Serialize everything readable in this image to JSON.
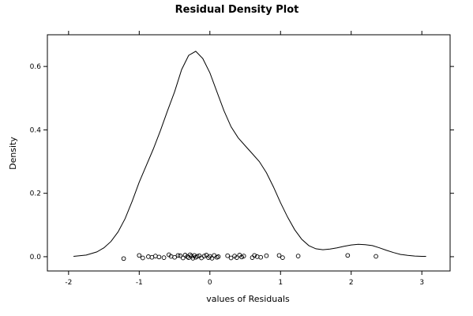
{
  "chart_data": {
    "type": "line",
    "title": "Residual Density Plot",
    "xlabel": "values of Residuals",
    "ylabel": "Density",
    "xlim": [
      -2.3,
      3.4
    ],
    "ylim": [
      -0.045,
      0.7
    ],
    "x_ticks": [
      -2,
      -1,
      0,
      1,
      2,
      3
    ],
    "y_ticks": [
      0.0,
      0.2,
      0.4,
      0.6
    ],
    "y_tick_labels": [
      "0.0",
      "0.2",
      "0.4",
      "0.6"
    ],
    "grid": false,
    "density_curve": {
      "x": [
        -1.93,
        -1.75,
        -1.6,
        -1.5,
        -1.4,
        -1.3,
        -1.2,
        -1.1,
        -1.0,
        -0.9,
        -0.8,
        -0.7,
        -0.6,
        -0.5,
        -0.4,
        -0.3,
        -0.2,
        -0.1,
        0.0,
        0.1,
        0.2,
        0.3,
        0.4,
        0.5,
        0.6,
        0.7,
        0.8,
        0.9,
        1.0,
        1.1,
        1.2,
        1.3,
        1.4,
        1.5,
        1.6,
        1.7,
        1.8,
        1.9,
        2.0,
        2.1,
        2.2,
        2.3,
        2.4,
        2.5,
        2.6,
        2.7,
        2.8,
        2.9,
        3.0,
        3.06
      ],
      "y": [
        0.001,
        0.005,
        0.015,
        0.028,
        0.048,
        0.078,
        0.12,
        0.175,
        0.235,
        0.288,
        0.34,
        0.398,
        0.46,
        0.52,
        0.59,
        0.635,
        0.648,
        0.625,
        0.58,
        0.52,
        0.46,
        0.41,
        0.375,
        0.35,
        0.325,
        0.3,
        0.265,
        0.22,
        0.17,
        0.125,
        0.085,
        0.055,
        0.035,
        0.025,
        0.022,
        0.024,
        0.028,
        0.033,
        0.037,
        0.039,
        0.038,
        0.035,
        0.028,
        0.02,
        0.013,
        0.007,
        0.004,
        0.002,
        0.001,
        0.001
      ]
    },
    "residual_points": {
      "x": [
        -1.22,
        -1.0,
        -0.95,
        -0.87,
        -0.82,
        -0.77,
        -0.72,
        -0.65,
        -0.58,
        -0.55,
        -0.5,
        -0.45,
        -0.42,
        -0.38,
        -0.35,
        -0.32,
        -0.3,
        -0.28,
        -0.26,
        -0.24,
        -0.22,
        -0.2,
        -0.18,
        -0.15,
        -0.12,
        -0.08,
        -0.05,
        -0.02,
        0.0,
        0.03,
        0.06,
        0.1,
        0.12,
        0.25,
        0.3,
        0.35,
        0.38,
        0.42,
        0.45,
        0.48,
        0.6,
        0.63,
        0.67,
        0.72,
        0.8,
        0.98,
        1.03,
        1.25,
        1.95,
        2.35
      ],
      "y": [
        -0.006,
        0.004,
        -0.004,
        0.0,
        -0.002,
        0.002,
        -0.001,
        -0.003,
        0.006,
        0.001,
        -0.002,
        0.004,
        0.003,
        -0.004,
        0.005,
        0.0,
        -0.003,
        0.006,
        0.002,
        -0.005,
        0.004,
        -0.002,
        0.001,
        0.003,
        -0.004,
        0.002,
        0.005,
        -0.003,
        0.001,
        -0.005,
        0.004,
        -0.002,
        0.0,
        0.003,
        -0.004,
        0.002,
        -0.003,
        0.005,
        -0.001,
        0.002,
        -0.003,
        0.004,
        0.0,
        -0.002,
        0.003,
        0.004,
        -0.003,
        0.002,
        0.004,
        0.001
      ]
    }
  }
}
